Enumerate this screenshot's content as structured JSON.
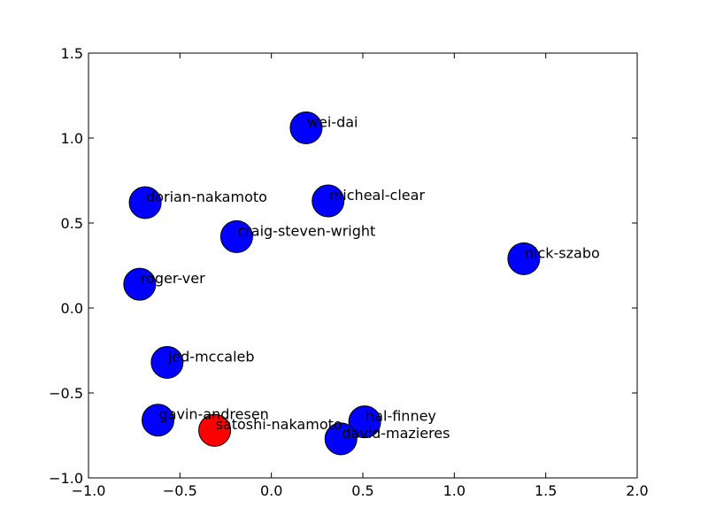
{
  "chart_data": {
    "type": "scatter",
    "title": "",
    "xlabel": "",
    "ylabel": "",
    "xlim": [
      -1.0,
      2.0
    ],
    "ylim": [
      -1.0,
      1.5
    ],
    "grid": false,
    "x_ticks": [
      -1.0,
      -0.5,
      0.0,
      0.5,
      1.0,
      1.5,
      2.0
    ],
    "x_tick_labels": [
      "−1.0",
      "−0.5",
      "0.0",
      "0.5",
      "1.0",
      "1.5",
      "2.0"
    ],
    "y_ticks": [
      -1.0,
      -0.5,
      0.0,
      0.5,
      1.0,
      1.5
    ],
    "y_tick_labels": [
      "−1.0",
      "−0.5",
      "0.0",
      "0.5",
      "1.0",
      "1.5"
    ],
    "points": [
      {
        "label": "wei-dai",
        "x": 0.19,
        "y": 1.06,
        "color": "#0000ff"
      },
      {
        "label": "dorian-nakamoto",
        "x": -0.69,
        "y": 0.62,
        "color": "#0000ff"
      },
      {
        "label": "micheal-clear",
        "x": 0.31,
        "y": 0.63,
        "color": "#0000ff"
      },
      {
        "label": "craig-steven-wright",
        "x": -0.19,
        "y": 0.42,
        "color": "#0000ff"
      },
      {
        "label": "nick-szabo",
        "x": 1.38,
        "y": 0.29,
        "color": "#0000ff"
      },
      {
        "label": "roger-ver",
        "x": -0.72,
        "y": 0.14,
        "color": "#0000ff"
      },
      {
        "label": "jed-mccaleb",
        "x": -0.57,
        "y": -0.32,
        "color": "#0000ff"
      },
      {
        "label": "gavin-andresen",
        "x": -0.62,
        "y": -0.66,
        "color": "#0000ff"
      },
      {
        "label": "satoshi-nakamoto",
        "x": -0.31,
        "y": -0.72,
        "color": "#ff0000"
      },
      {
        "label": "hal-finney",
        "x": 0.51,
        "y": -0.67,
        "color": "#0000ff"
      },
      {
        "label": "david-mazieres",
        "x": 0.38,
        "y": -0.77,
        "color": "#0000ff"
      }
    ]
  }
}
